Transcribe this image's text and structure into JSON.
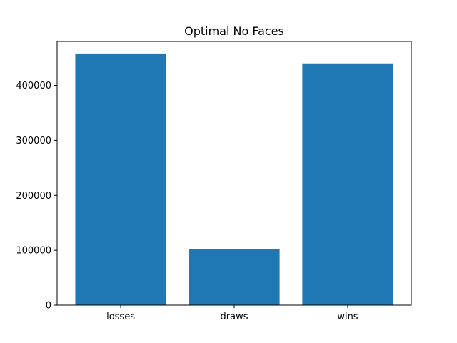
{
  "chart_data": {
    "type": "bar",
    "title": "Optimal No Faces",
    "xlabel": "",
    "ylabel": "",
    "categories": [
      "losses",
      "draws",
      "wins"
    ],
    "values": [
      458000,
      102500,
      440000
    ],
    "ylim": [
      0,
      480000
    ],
    "yticks": [
      0,
      100000,
      200000,
      300000,
      400000
    ],
    "ytick_labels": [
      "0",
      "100000",
      "200000",
      "300000",
      "400000"
    ],
    "grid": false,
    "legend": "none",
    "bar_color": "#1f77b4"
  }
}
